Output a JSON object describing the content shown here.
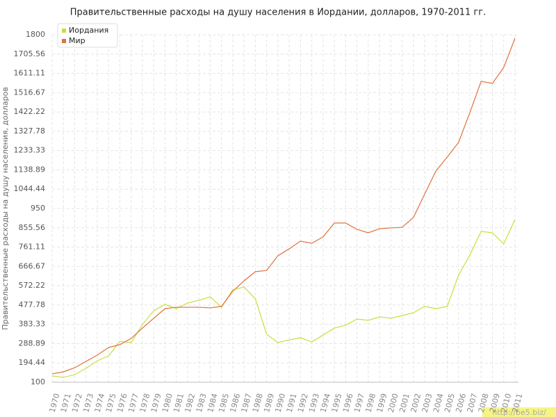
{
  "chart_data": {
    "type": "line",
    "title": "Правительственные расходы на душу населения в Иордании, долларов, 1970-2011 гг.",
    "y_label": "Правительственные расходы на душу населения, долларов",
    "categories": [
      "1970",
      "1971",
      "1972",
      "1973",
      "1974",
      "1975",
      "1976",
      "1977",
      "1978",
      "1979",
      "1980",
      "1981",
      "1982",
      "1983",
      "1984",
      "1985",
      "1986",
      "1987",
      "1988",
      "1989",
      "1990",
      "1991",
      "1992",
      "1993",
      "1994",
      "1995",
      "1996",
      "1997",
      "1998",
      "1999",
      "2000",
      "2001",
      "2002",
      "2003",
      "2004",
      "2005",
      "2006",
      "2007",
      "2008",
      "2009",
      "2010",
      "2011"
    ],
    "series": [
      {
        "name": "Иордания",
        "color": "#c5e03c",
        "values": [
          131,
          124,
          137,
          168,
          205,
          229,
          300,
          294,
          382,
          450,
          481,
          460,
          488,
          501,
          518,
          467,
          552,
          566,
          508,
          335,
          294,
          307,
          318,
          297,
          331,
          365,
          379,
          409,
          403,
          420,
          413,
          426,
          440,
          471,
          460,
          471,
          624,
          722,
          838,
          831,
          777,
          896
        ]
      },
      {
        "name": "Мир",
        "color": "#e0703c",
        "values": [
          141,
          151,
          171,
          202,
          233,
          270,
          284,
          314,
          365,
          413,
          460,
          467,
          467,
          467,
          464,
          471,
          545,
          596,
          641,
          647,
          719,
          753,
          790,
          780,
          811,
          879,
          879,
          848,
          831,
          851,
          855,
          858,
          906,
          1021,
          1134,
          1202,
          1273,
          1419,
          1572,
          1562,
          1640,
          1783
        ]
      }
    ],
    "ylim": [
      100,
      1800
    ],
    "yticks": [
      100,
      194.44,
      288.89,
      383.33,
      477.78,
      572.22,
      666.67,
      761.11,
      855.56,
      950,
      1044.44,
      1138.89,
      1233.33,
      1327.78,
      1422.22,
      1516.67,
      1611.11,
      1705.56,
      1800
    ],
    "grid": true,
    "legend": "top-left",
    "watermark": "http://be5.biz/"
  }
}
